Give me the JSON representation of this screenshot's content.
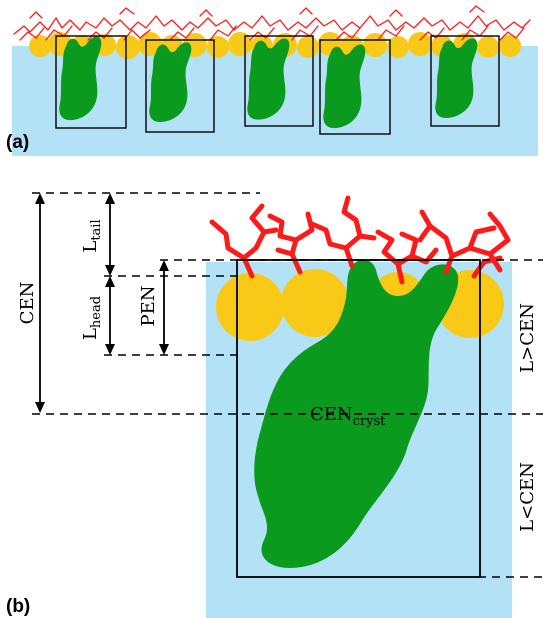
{
  "panels": {
    "a_label": "(a)",
    "b_label": "(b)"
  },
  "dimensions": {
    "cen": "CEN",
    "l_tail_main": "L",
    "l_tail_sub": "tail",
    "l_head_main": "L",
    "l_head_sub": "head",
    "pen": "PEN",
    "cen_cryst_main": "CEN",
    "cen_cryst_sub": "cryst",
    "l_gt_cen": "L>CEN",
    "l_lt_cen": "L<CEN"
  },
  "colors": {
    "water": "#b3e1f5",
    "headgroup": "#f9c918",
    "protein": "#0a9a1e",
    "tail": "#ff1a1a",
    "outline": "#000000"
  }
}
